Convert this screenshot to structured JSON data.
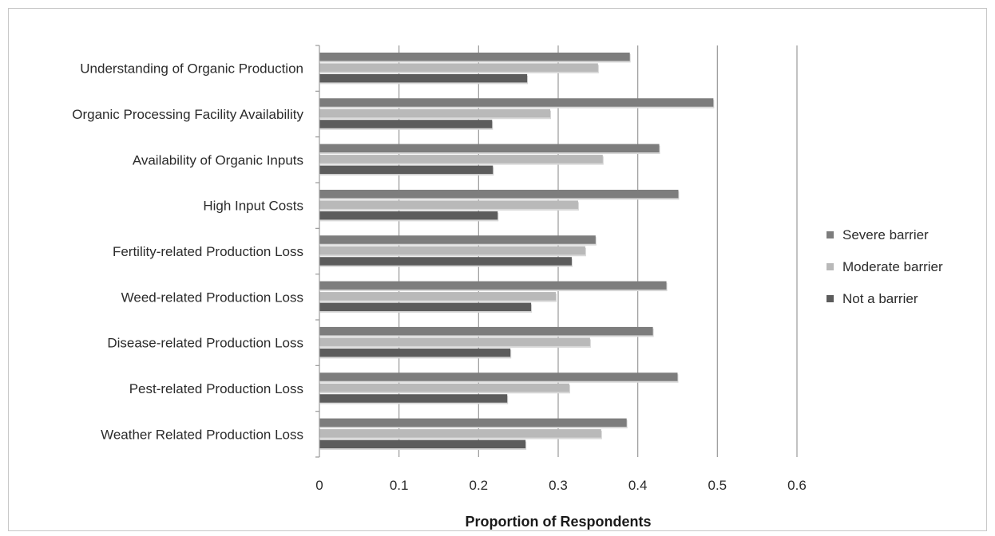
{
  "chart_data": {
    "type": "bar",
    "orientation": "horizontal",
    "categories": [
      "Understanding of Organic Production",
      "Organic Processing Facility Availability",
      "Availability of Organic Inputs",
      "High Input Costs",
      "Fertility-related Production Loss",
      "Weed-related Production Loss",
      "Disease-related Production Loss",
      "Pest-related Production Loss",
      "Weather Related Production Loss"
    ],
    "series": [
      {
        "name": "Severe barrier",
        "color": "#7d7d7d",
        "values": [
          0.39,
          0.495,
          0.427,
          0.451,
          0.347,
          0.436,
          0.419,
          0.45,
          0.386
        ]
      },
      {
        "name": "Moderate barrier",
        "color": "#b9b9b9",
        "values": [
          0.35,
          0.29,
          0.356,
          0.325,
          0.334,
          0.297,
          0.34,
          0.314,
          0.354
        ]
      },
      {
        "name": "Not a barrier",
        "color": "#5c5c5c",
        "values": [
          0.261,
          0.217,
          0.218,
          0.224,
          0.317,
          0.266,
          0.24,
          0.236,
          0.259
        ]
      }
    ],
    "xlabel": "Proportion of Respondents",
    "ylabel": "",
    "title": "",
    "xlim": [
      0,
      0.6
    ],
    "xticks": [
      "0",
      "0.1",
      "0.2",
      "0.3",
      "0.4",
      "0.5",
      "0.6"
    ],
    "grid": true,
    "legend_position": "right"
  }
}
